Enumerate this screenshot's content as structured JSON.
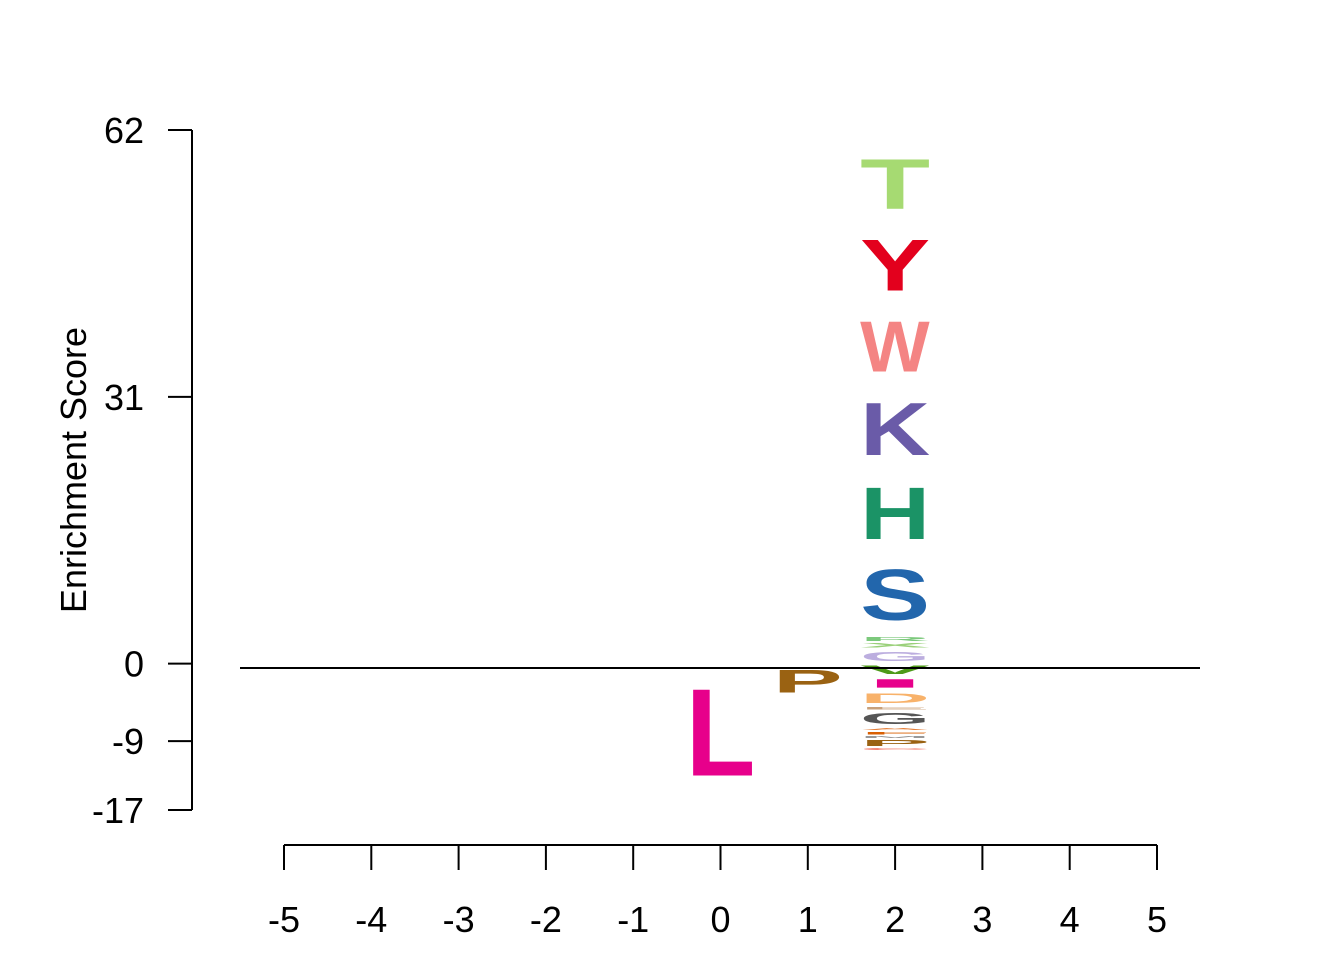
{
  "chart_data": {
    "type": "sequence-logo",
    "ylabel": "Enrichment Score",
    "ylim": [
      -17,
      62
    ],
    "yticks": [
      62,
      31,
      0,
      -9,
      -17
    ],
    "ytick_labels": [
      "62",
      "31",
      "0",
      "-9",
      "-17"
    ],
    "xticks": [
      -5,
      -4,
      -3,
      -2,
      -1,
      0,
      1,
      2,
      3,
      4,
      5
    ],
    "xtick_labels": [
      "-5",
      "-4",
      "-3",
      "-2",
      "-1",
      "0",
      "1",
      "2",
      "3",
      "4",
      "5"
    ],
    "positions": [
      {
        "x": 0,
        "letters": [
          {
            "letter": "L",
            "score": -16.2,
            "color": "#e7008b"
          }
        ]
      },
      {
        "x": 1,
        "letters": [
          {
            "letter": "P",
            "score": -4.2,
            "color": "#9a6212"
          }
        ]
      },
      {
        "x": 2,
        "letters": [
          {
            "letter": "G",
            "score": 1.7,
            "color": "#bcaedf"
          },
          {
            "letter": "X",
            "score": 0.8,
            "color": "#9ad07a"
          },
          {
            "letter": "R",
            "score": 0.7,
            "color": "#7cc97c"
          },
          {
            "letter": "S",
            "score": 9.4,
            "color": "#2266ac"
          },
          {
            "letter": "H",
            "score": 9.7,
            "color": "#1b9366"
          },
          {
            "letter": "K",
            "score": 9.8,
            "color": "#6a5ba8"
          },
          {
            "letter": "W",
            "score": 9.4,
            "color": "#f48483"
          },
          {
            "letter": "Y",
            "score": 9.5,
            "color": "#e3001d"
          },
          {
            "letter": "T",
            "score": 9.3,
            "color": "#a6da72"
          },
          {
            "letter": "V",
            "score": -1.5,
            "color": "#4e9a1a"
          },
          {
            "letter": "I",
            "score": -1.6,
            "color": "#e7008b"
          },
          {
            "letter": "D",
            "score": -1.8,
            "color": "#f8b26a"
          },
          {
            "letter": "E",
            "score": -0.5,
            "color": "#c8a07a"
          },
          {
            "letter": "G",
            "score": -2.0,
            "color": "#555555"
          },
          {
            "letter": "A",
            "score": -0.4,
            "color": "#e5803c"
          },
          {
            "letter": "F",
            "score": -0.5,
            "color": "#d95f02"
          },
          {
            "letter": "M",
            "score": -0.4,
            "color": "#999999"
          },
          {
            "letter": "P",
            "score": -1.1,
            "color": "#9a6212"
          },
          {
            "letter": "C",
            "score": -0.3,
            "color": "#f07060"
          }
        ]
      }
    ]
  }
}
